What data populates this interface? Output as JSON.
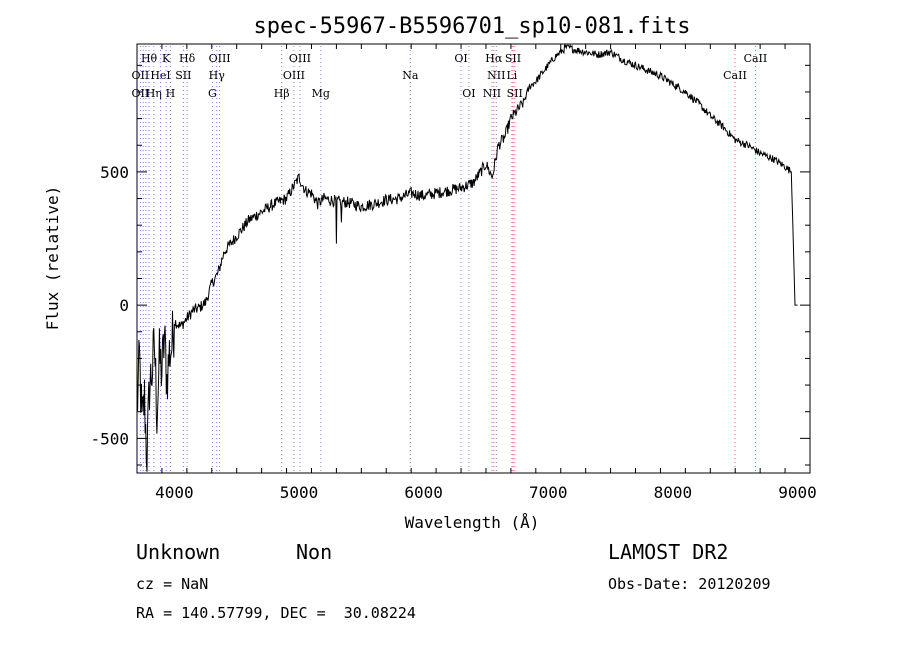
{
  "chart_data": {
    "type": "line",
    "title": "spec-55967-B5596701_sp10-081.fits",
    "xlabel": "Wavelength (Å)",
    "ylabel": "Flux (relative)",
    "xlim": [
      3700,
      9100
    ],
    "ylim": [
      -630,
      980
    ],
    "x_ticks": [
      4000,
      5000,
      6000,
      7000,
      8000,
      9000
    ],
    "y_ticks": [
      -500,
      0,
      500
    ],
    "grid": false,
    "series": [
      {
        "x": [
          3700,
          3720,
          3740,
          3760,
          3780,
          3800,
          3820,
          3840,
          3860,
          3880,
          3900,
          3920,
          3940,
          3960,
          3980,
          4000,
          4050,
          4100,
          4150,
          4200,
          4250,
          4300,
          4350,
          4400,
          4450,
          4500,
          4600,
          4700,
          4800,
          4900,
          5000,
          5050,
          5100,
          5150,
          5200,
          5300,
          5400,
          5500,
          5600,
          5700,
          5800,
          5900,
          6000,
          6100,
          6200,
          6300,
          6400,
          6500,
          6550,
          6600,
          6650,
          6700,
          6750,
          6800,
          6850,
          6900,
          6950,
          7000,
          7050,
          7100,
          7150,
          7200,
          7300,
          7400,
          7500,
          7600,
          7700,
          7800,
          7900,
          8000,
          8100,
          8200,
          8300,
          8400,
          8500,
          8600,
          8700,
          8800,
          8900,
          8950,
          8980,
          9000
        ],
        "y": [
          -400,
          -200,
          -450,
          -350,
          -580,
          -300,
          -250,
          -150,
          -400,
          -200,
          -250,
          -120,
          -280,
          -180,
          -150,
          -60,
          -80,
          -50,
          -20,
          -10,
          10,
          80,
          120,
          200,
          230,
          260,
          320,
          350,
          380,
          400,
          480,
          430,
          420,
          380,
          400,
          390,
          385,
          370,
          380,
          395,
          400,
          420,
          410,
          420,
          430,
          440,
          460,
          530,
          480,
          600,
          630,
          700,
          730,
          760,
          820,
          840,
          870,
          900,
          930,
          950,
          970,
          960,
          950,
          940,
          950,
          920,
          900,
          880,
          860,
          830,
          800,
          760,
          710,
          670,
          620,
          600,
          570,
          550,
          520,
          500,
          0,
          0
        ]
      }
    ],
    "annotations": [
      {
        "text": "Hθ",
        "x": 3797,
        "row": 1
      },
      {
        "text": "K",
        "x": 3934,
        "row": 1
      },
      {
        "text": "Hδ",
        "x": 4102,
        "row": 1
      },
      {
        "text": "OIII",
        "x": 4363,
        "row": 1
      },
      {
        "text": "OIII",
        "x": 5007,
        "row": 1
      },
      {
        "text": "OI",
        "x": 6300,
        "row": 1
      },
      {
        "text": "Hα",
        "x": 6563,
        "row": 1
      },
      {
        "text": "SII",
        "x": 6717,
        "row": 1
      },
      {
        "text": "CaII",
        "x": 8662,
        "row": 1
      },
      {
        "text": "OII",
        "x": 3727,
        "row": 2
      },
      {
        "text": "HeI",
        "x": 3889,
        "row": 2
      },
      {
        "text": "SII",
        "x": 4072,
        "row": 2
      },
      {
        "text": "Hγ",
        "x": 4340,
        "row": 2
      },
      {
        "text": "OIII",
        "x": 4959,
        "row": 2
      },
      {
        "text": "Na",
        "x": 5893,
        "row": 2
      },
      {
        "text": "NII",
        "x": 6583,
        "row": 2
      },
      {
        "text": "Li",
        "x": 6708,
        "row": 2
      },
      {
        "text": "CaII",
        "x": 8498,
        "row": 2
      },
      {
        "text": "OII",
        "x": 3727,
        "row": 3
      },
      {
        "text": "Hη",
        "x": 3835,
        "row": 3
      },
      {
        "text": "H",
        "x": 3968,
        "row": 3
      },
      {
        "text": "G",
        "x": 4305,
        "row": 3
      },
      {
        "text": "Hβ",
        "x": 4861,
        "row": 3
      },
      {
        "text": "Mg",
        "x": 5175,
        "row": 3
      },
      {
        "text": "OI",
        "x": 6363,
        "row": 3
      },
      {
        "text": "NII",
        "x": 6548,
        "row": 3
      },
      {
        "text": "SII",
        "x": 6731,
        "row": 3
      }
    ],
    "marker_lines": [
      3727,
      3750,
      3771,
      3797,
      3835,
      3889,
      3934,
      3968,
      4072,
      4102,
      4305,
      4340,
      4363,
      4861,
      4959,
      5007,
      5175,
      5893,
      6300,
      6363,
      6548,
      6563,
      6583,
      6708,
      6717,
      6731,
      8498,
      8662
    ],
    "red_marker_lines": [
      6563,
      6717,
      6731,
      8498,
      8662
    ]
  },
  "info": {
    "class": "Unknown",
    "subclass": "Non",
    "cz": "cz = NaN",
    "radec": "RA = 140.57799, DEC =  30.08224",
    "survey": "LAMOST DR2",
    "obsdate": "Obs-Date: 20120209"
  },
  "colors": {
    "marker_blue": "#8080ff",
    "marker_red": "#ff6060"
  }
}
